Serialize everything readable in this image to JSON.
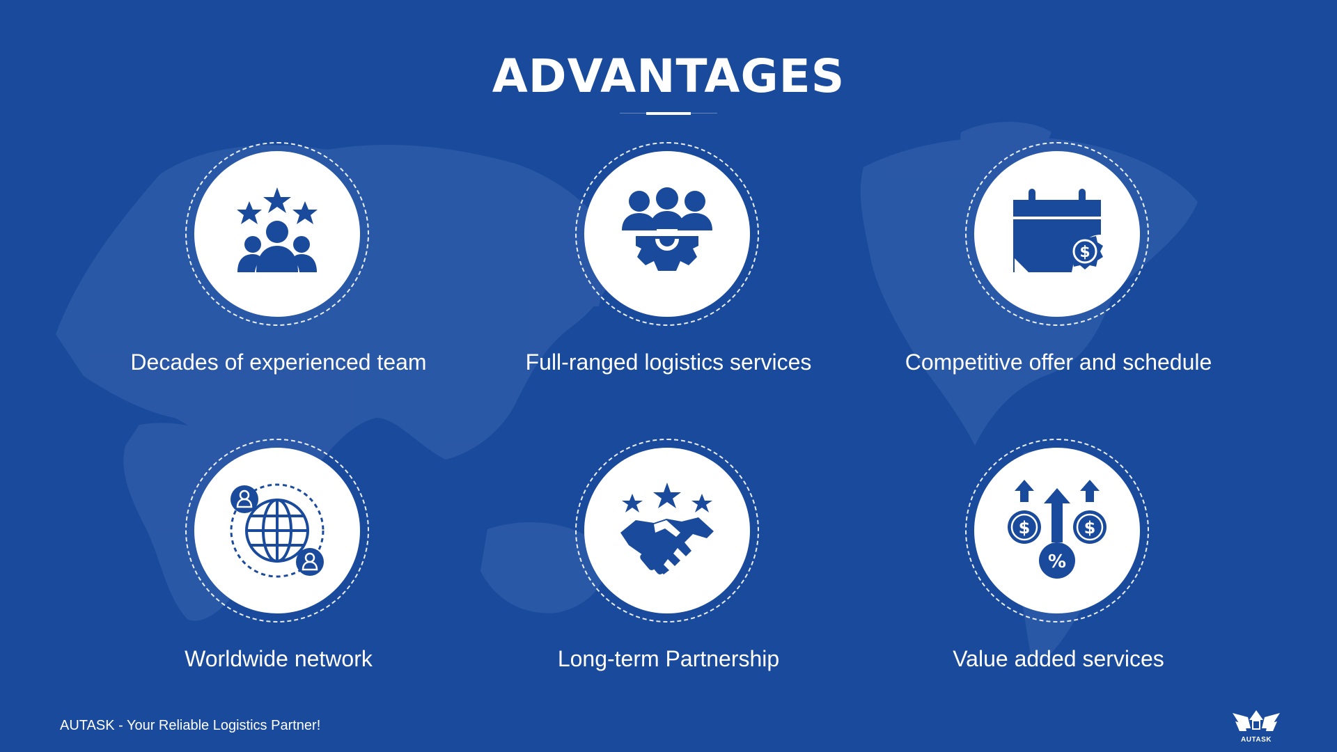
{
  "header": {
    "title": "ADVANTAGES"
  },
  "advantages": [
    {
      "label": "Decades of experienced team",
      "icon": "team-stars-icon"
    },
    {
      "label": "Full-ranged logistics services",
      "icon": "team-gear-icon"
    },
    {
      "label": "Competitive offer and schedule",
      "icon": "calendar-dollar-icon"
    },
    {
      "label": "Worldwide network",
      "icon": "globe-network-icon"
    },
    {
      "label": "Long-term Partnership",
      "icon": "handshake-stars-icon"
    },
    {
      "label": "Value added services",
      "icon": "dollar-growth-icon"
    }
  ],
  "footer": {
    "tagline": "AUTASK - Your Reliable Logistics Partner!",
    "logo_text": "AUTASK"
  },
  "colors": {
    "background": "#1a4a9c",
    "icon": "#1a4a9c",
    "map": "#2d5aa8",
    "text": "#ffffff"
  }
}
